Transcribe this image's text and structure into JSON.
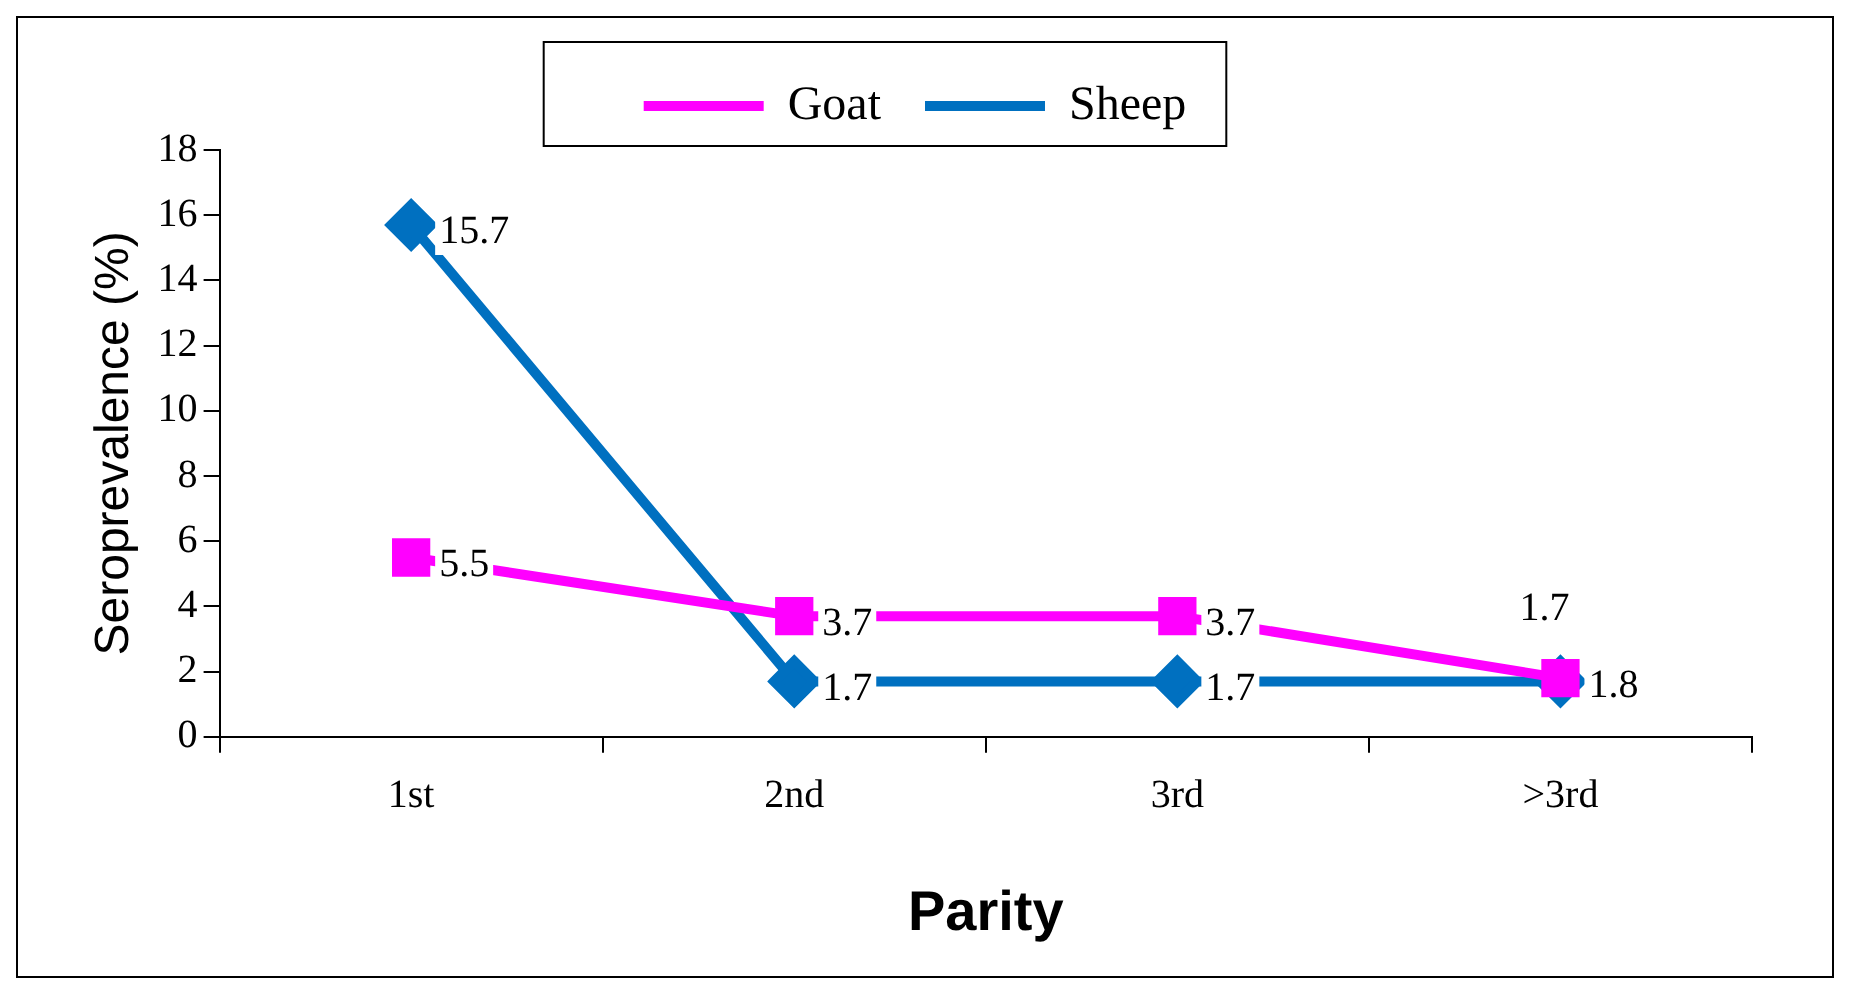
{
  "chart_data": {
    "type": "line",
    "xlabel": "Parity",
    "ylabel": "Seroprevalence (%)",
    "categories": [
      "1st",
      "2nd",
      "3rd",
      ">3rd"
    ],
    "series": [
      {
        "name": "Goat",
        "color": "#ff00ff",
        "marker": "square",
        "values": [
          5.5,
          3.7,
          3.7,
          1.8
        ]
      },
      {
        "name": "Sheep",
        "color": "#0070c0",
        "marker": "diamond",
        "values": [
          15.7,
          1.7,
          1.7,
          1.7
        ]
      }
    ],
    "ylim": [
      0,
      18
    ],
    "yticks": [
      0,
      2,
      4,
      6,
      8,
      10,
      12,
      14,
      16,
      18
    ],
    "grid": false,
    "legend": "top",
    "data_labels": true
  }
}
